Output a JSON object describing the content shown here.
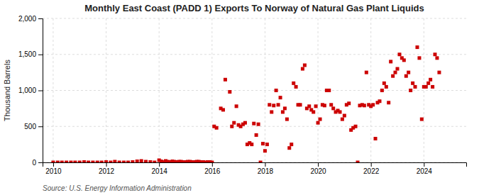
{
  "chart_data": {
    "type": "scatter",
    "title": "Monthly East Coast (PADD 1) Exports To Norway of Natural Gas Plant Liquids",
    "ylabel": "Thousand Barrels",
    "source": "Source: U.S. Energy Information Administration",
    "color": "#cc0000",
    "marker": "square",
    "grid": true,
    "xlim": [
      2009.6,
      2025.6
    ],
    "xticks": [
      2010,
      2012,
      2014,
      2016,
      2018,
      2020,
      2022,
      2024
    ],
    "ylim": [
      0,
      2000
    ],
    "yticks": [
      0,
      500,
      {
        "value": 1000,
        "label": "1,000"
      },
      {
        "value": 1500,
        "label": "1,500"
      },
      {
        "value": 2000,
        "label": "2,000"
      }
    ],
    "x": [
      2010.0,
      2010.17,
      2010.33,
      2010.5,
      2010.67,
      2010.83,
      2011.0,
      2011.17,
      2011.33,
      2011.5,
      2011.67,
      2011.83,
      2012.0,
      2012.17,
      2012.33,
      2012.5,
      2012.67,
      2012.83,
      2013.0,
      2013.17,
      2013.33,
      2013.5,
      2013.67,
      2013.83,
      2014.0,
      2014.08,
      2014.17,
      2014.25,
      2014.33,
      2014.42,
      2014.5,
      2014.58,
      2014.67,
      2014.75,
      2014.83,
      2014.92,
      2015.0,
      2015.08,
      2015.17,
      2015.25,
      2015.33,
      2015.42,
      2015.5,
      2015.58,
      2015.67,
      2015.75,
      2015.83,
      2015.92,
      2016.0,
      2016.08,
      2016.17,
      2016.33,
      2016.42,
      2016.5,
      2016.67,
      2016.75,
      2016.83,
      2016.92,
      2017.0,
      2017.08,
      2017.17,
      2017.25,
      2017.33,
      2017.42,
      2017.5,
      2017.58,
      2017.67,
      2017.75,
      2017.83,
      2017.92,
      2018.0,
      2018.08,
      2018.17,
      2018.25,
      2018.33,
      2018.42,
      2018.5,
      2018.58,
      2018.67,
      2018.75,
      2018.83,
      2018.92,
      2019.0,
      2019.08,
      2019.17,
      2019.25,
      2019.33,
      2019.42,
      2019.5,
      2019.58,
      2019.67,
      2019.75,
      2019.83,
      2019.92,
      2020.0,
      2020.08,
      2020.17,
      2020.25,
      2020.33,
      2020.42,
      2020.5,
      2020.58,
      2020.67,
      2020.75,
      2020.83,
      2020.92,
      2021.0,
      2021.08,
      2021.17,
      2021.25,
      2021.33,
      2021.42,
      2021.5,
      2021.58,
      2021.67,
      2021.75,
      2021.83,
      2021.92,
      2022.0,
      2022.08,
      2022.17,
      2022.25,
      2022.33,
      2022.42,
      2022.5,
      2022.58,
      2022.67,
      2022.75,
      2022.83,
      2022.92,
      2023.0,
      2023.08,
      2023.17,
      2023.25,
      2023.33,
      2023.42,
      2023.5,
      2023.58,
      2023.67,
      2023.75,
      2023.83,
      2023.92,
      2024.0,
      2024.08,
      2024.17,
      2024.25,
      2024.33,
      2024.42,
      2024.5,
      2024.58
    ],
    "values": [
      0,
      0,
      0,
      0,
      0,
      0,
      0,
      5,
      0,
      0,
      0,
      0,
      5,
      0,
      10,
      0,
      0,
      0,
      5,
      15,
      20,
      10,
      5,
      0,
      30,
      15,
      5,
      20,
      10,
      5,
      15,
      10,
      5,
      10,
      10,
      5,
      5,
      10,
      10,
      5,
      5,
      10,
      10,
      5,
      5,
      0,
      5,
      5,
      0,
      500,
      480,
      750,
      730,
      1150,
      980,
      500,
      550,
      780,
      520,
      500,
      530,
      550,
      250,
      270,
      250,
      540,
      380,
      530,
      0,
      260,
      160,
      250,
      800,
      700,
      790,
      1000,
      800,
      900,
      700,
      750,
      600,
      200,
      250,
      1100,
      1050,
      800,
      800,
      1300,
      1350,
      750,
      780,
      730,
      700,
      780,
      550,
      600,
      800,
      790,
      1000,
      1000,
      800,
      750,
      700,
      720,
      700,
      600,
      650,
      800,
      820,
      450,
      480,
      500,
      0,
      790,
      800,
      790,
      1250,
      800,
      780,
      800,
      330,
      830,
      850,
      1000,
      1100,
      1050,
      830,
      1400,
      1200,
      1250,
      1300,
      1500,
      1450,
      1420,
      1200,
      1250,
      1000,
      1100,
      1050,
      1600,
      1450,
      600,
      1050,
      1050,
      1100,
      1150,
      1050,
      1500,
      1450,
      1250
    ]
  }
}
